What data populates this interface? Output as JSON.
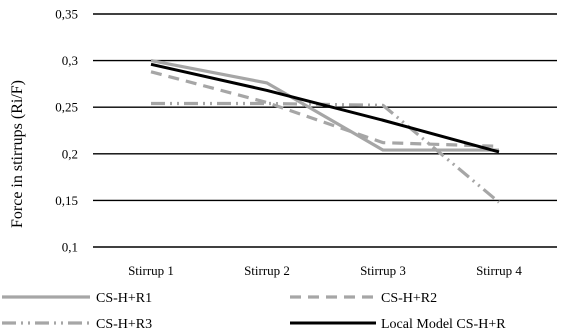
{
  "chart_data": {
    "type": "line",
    "ylabel": "Force in stirrups (Ri/F)",
    "xlabel": "",
    "categories": [
      "Stirrup 1",
      "Stirrup 2",
      "Stirrup 3",
      "Stirrup 4"
    ],
    "ylim": [
      0.1,
      0.35
    ],
    "yticks": [
      0.1,
      0.15,
      0.2,
      0.25,
      0.3,
      0.35
    ],
    "ytick_labels": [
      "0,1",
      "0,15",
      "0,2",
      "0,25",
      "0,3",
      "0,35"
    ],
    "grid": true,
    "legend_position": "bottom",
    "series": [
      {
        "name": "CS-H+R1",
        "values": [
          0.3,
          0.276,
          0.204,
          0.204
        ],
        "color": "#a6a6a6",
        "dash": "solid"
      },
      {
        "name": "CS-H+R2",
        "values": [
          0.288,
          0.255,
          0.212,
          0.208
        ],
        "color": "#a6a6a6",
        "dash": "dashed"
      },
      {
        "name": "CS-H+R3",
        "values": [
          0.254,
          0.254,
          0.252,
          0.148
        ],
        "color": "#a6a6a6",
        "dash": "dash-dot-dot"
      },
      {
        "name": "Local Model CS-H+R",
        "values": [
          0.296,
          0.268,
          0.236,
          0.202
        ],
        "color": "#000000",
        "dash": "solid"
      }
    ]
  }
}
